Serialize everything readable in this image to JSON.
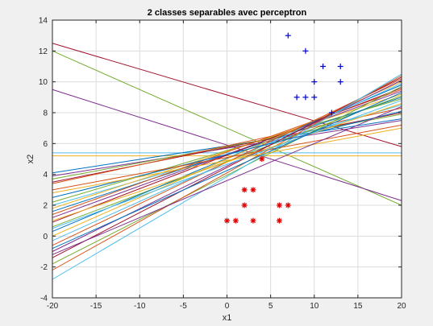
{
  "chart_data": {
    "type": "scatter",
    "title": "2 classes separables avec perceptron",
    "xlabel": "x1",
    "ylabel": "x2",
    "xlim": [
      -20,
      20
    ],
    "ylim": [
      -4,
      14
    ],
    "xticks": [
      "-20",
      "-15",
      "-10",
      "-5",
      "0",
      "5",
      "10",
      "15",
      "20"
    ],
    "yticks": [
      "-4",
      "-2",
      "0",
      "2",
      "4",
      "6",
      "8",
      "10",
      "12",
      "14"
    ],
    "grid": true,
    "legend": "none",
    "series": [
      {
        "marker": "plus",
        "color": "#0000cc",
        "points": [
          [
            7,
            13
          ],
          [
            9,
            12
          ],
          [
            11,
            11
          ],
          [
            13,
            11
          ],
          [
            10,
            10
          ],
          [
            13,
            10
          ],
          [
            8,
            9
          ],
          [
            9,
            9
          ],
          [
            10,
            9
          ],
          [
            12,
            8
          ]
        ]
      },
      {
        "marker": "asterisk",
        "color": "#e00000",
        "points": [
          [
            4,
            5
          ],
          [
            2,
            3
          ],
          [
            3,
            3
          ],
          [
            2,
            2
          ],
          [
            6,
            2
          ],
          [
            7,
            2
          ],
          [
            0,
            1
          ],
          [
            1,
            1
          ],
          [
            3,
            1
          ],
          [
            6,
            1
          ]
        ]
      }
    ],
    "lines": [
      {
        "y_left": 12.5,
        "y_right": 5.8,
        "color": "#a2142f"
      },
      {
        "y_left": 12.0,
        "y_right": 2.0,
        "color": "#77ac30"
      },
      {
        "y_left": 9.5,
        "y_right": 2.3,
        "color": "#7e2f8e"
      },
      {
        "y_left": 5.4,
        "y_right": 5.4,
        "color": "#4dbeee"
      },
      {
        "y_left": 5.2,
        "y_right": 5.2,
        "color": "#edb120"
      },
      {
        "y_left": 4.1,
        "y_right": 7.6,
        "color": "#0072bd"
      },
      {
        "y_left": 3.9,
        "y_right": 7.5,
        "color": "#7e2f8e"
      },
      {
        "y_left": 3.7,
        "y_right": 7.9,
        "color": "#77ac30"
      },
      {
        "y_left": 3.5,
        "y_right": 8.0,
        "color": "#a2142f"
      },
      {
        "y_left": 3.4,
        "y_right": 8.3,
        "color": "#d95319"
      },
      {
        "y_left": 2.2,
        "y_right": 8.9,
        "color": "#77ac30"
      },
      {
        "y_left": 2.0,
        "y_right": 8.5,
        "color": "#4dbeee"
      },
      {
        "y_left": 1.8,
        "y_right": 9.2,
        "color": "#edb120"
      },
      {
        "y_left": 1.6,
        "y_right": 9.0,
        "color": "#0072bd"
      },
      {
        "y_left": 1.4,
        "y_right": 9.5,
        "color": "#d95319"
      },
      {
        "y_left": 1.2,
        "y_right": 9.4,
        "color": "#7e2f8e"
      },
      {
        "y_left": 0.9,
        "y_right": 9.6,
        "color": "#a2142f"
      },
      {
        "y_left": 0.6,
        "y_right": 9.1,
        "color": "#77ac30"
      },
      {
        "y_left": 0.3,
        "y_right": 9.8,
        "color": "#0072bd"
      },
      {
        "y_left": 0.0,
        "y_right": 10.0,
        "color": "#edb120"
      },
      {
        "y_left": -0.3,
        "y_right": 9.9,
        "color": "#4dbeee"
      },
      {
        "y_left": -0.6,
        "y_right": 10.2,
        "color": "#d95319"
      },
      {
        "y_left": -1.0,
        "y_right": 10.1,
        "color": "#7e2f8e"
      },
      {
        "y_left": -1.4,
        "y_right": 10.3,
        "color": "#a2142f"
      },
      {
        "y_left": -1.8,
        "y_right": 9.7,
        "color": "#77ac30"
      },
      {
        "y_left": -2.2,
        "y_right": 10.4,
        "color": "#d95319"
      },
      {
        "y_left": -2.8,
        "y_right": 10.5,
        "color": "#4dbeee"
      },
      {
        "y_left": 2.5,
        "y_right": 8.1,
        "color": "#0072bd"
      },
      {
        "y_left": 1.0,
        "y_right": 8.6,
        "color": "#edb120"
      },
      {
        "y_left": 3.0,
        "y_right": 7.2,
        "color": "#d95319"
      },
      {
        "y_left": 0.5,
        "y_right": 8.8,
        "color": "#4dbeee"
      },
      {
        "y_left": -0.8,
        "y_right": 9.3,
        "color": "#0072bd"
      },
      {
        "y_left": 2.8,
        "y_right": 7.0,
        "color": "#edb120"
      },
      {
        "y_left": -1.2,
        "y_right": 8.4,
        "color": "#7e2f8e"
      }
    ]
  }
}
